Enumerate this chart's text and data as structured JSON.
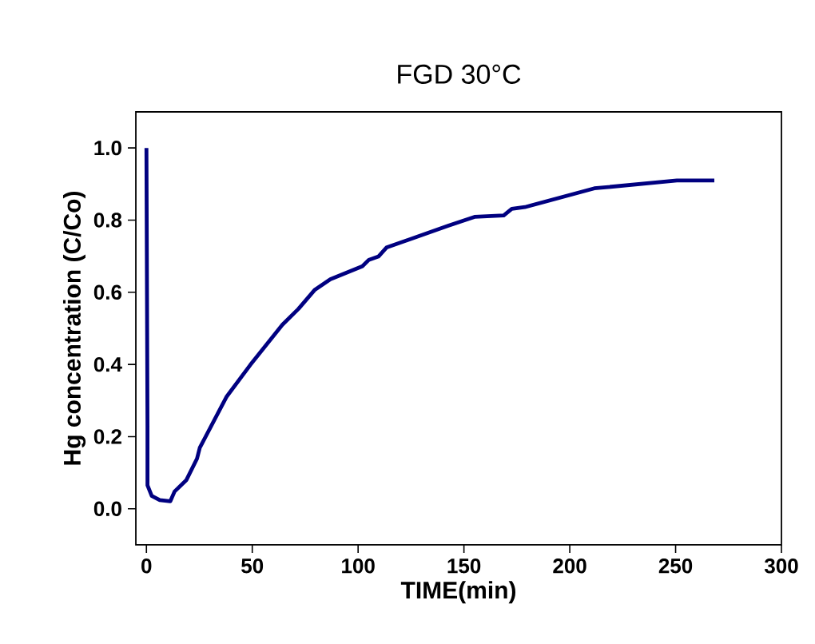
{
  "chart_data": {
    "type": "line",
    "title": "FGD  30°C",
    "xlabel": "TIME(min)",
    "ylabel": "Hg concentration (C/Co)",
    "xlim": [
      -5,
      300
    ],
    "xticks": [
      0,
      50,
      100,
      150,
      200,
      250,
      300
    ],
    "ylim": [
      -0.1,
      1.1
    ],
    "yticks": [
      {
        "value": 0,
        "label": "0.0"
      },
      {
        "value": 0.2,
        "label": "0.2"
      },
      {
        "value": 0.4,
        "label": "0.4"
      },
      {
        "value": 0.6,
        "label": "0.6"
      },
      {
        "value": 0.8,
        "label": "0.8"
      },
      {
        "value": 1,
        "label": "1.0"
      }
    ],
    "marker": "none",
    "line_style": "solid",
    "series": [
      {
        "color": "#000080",
        "x": [
          0,
          0.5,
          0.5,
          2.5,
          6.3,
          11.3,
          13.3,
          18.9,
          23.9,
          25.2,
          37.8,
          49.1,
          64.2,
          71.8,
          79.4,
          86.9,
          102,
          105.1,
          109.6,
          113.4,
          142.3,
          149.9,
          155,
          168.8,
          172.6,
          178.8,
          211.6,
          250.6,
          268.3
        ],
        "values": [
          1.0,
          0.228,
          0.065,
          0.036,
          0.024,
          0.021,
          0.048,
          0.08,
          0.139,
          0.169,
          0.31,
          0.399,
          0.51,
          0.554,
          0.606,
          0.636,
          0.672,
          0.69,
          0.699,
          0.724,
          0.784,
          0.799,
          0.809,
          0.813,
          0.831,
          0.836,
          0.888,
          0.91,
          0.91
        ]
      }
    ]
  }
}
